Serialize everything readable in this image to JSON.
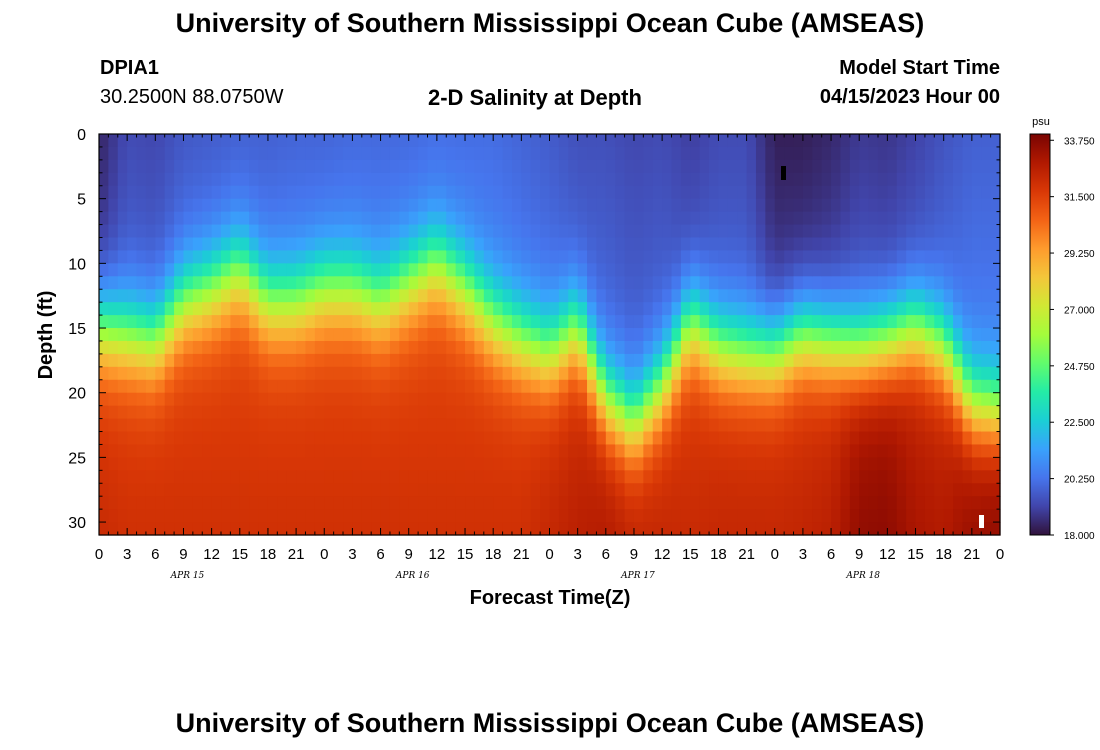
{
  "header": {
    "title": "University of Southern Mississippi Ocean Cube (AMSEAS)",
    "station_id": "DPIA1",
    "station_coords": "30.2500N  88.0750W",
    "plot_title": "2-D Salinity at Depth",
    "model_start_label": "Model Start Time",
    "model_start_value": "04/15/2023 Hour 00"
  },
  "footer": {
    "title": "University of Southern Mississippi Ocean Cube (AMSEAS)"
  },
  "colors": {
    "scale_stops": [
      "#30123b",
      "#4145ab",
      "#4675ed",
      "#39a2fc",
      "#1bcfd4",
      "#24eca6",
      "#61fc6c",
      "#a4fc3b",
      "#d1e834",
      "#f3c63a",
      "#fe9b2d",
      "#f36315",
      "#d93806",
      "#b11901",
      "#7a0402"
    ]
  },
  "chart_data": {
    "type": "heatmap",
    "title": "2-D Salinity at Depth",
    "xlabel": "Forecast Time(Z)",
    "ylabel": "Depth (ft)",
    "x_tick_labels": [
      "0",
      "3",
      "6",
      "9",
      "12",
      "15",
      "18",
      "21",
      "0",
      "3",
      "6",
      "9",
      "12",
      "15",
      "18",
      "21",
      "0",
      "3",
      "6",
      "9",
      "12",
      "15",
      "18",
      "21",
      "0",
      "3",
      "6",
      "9",
      "12",
      "15",
      "18",
      "21",
      "0"
    ],
    "date_labels": [
      {
        "label": "APR 15",
        "hour": 9
      },
      {
        "label": "APR 16",
        "hour": 33
      },
      {
        "label": "APR 17",
        "hour": 57
      },
      {
        "label": "APR 18",
        "hour": 81
      }
    ],
    "xlim": [
      0,
      96
    ],
    "ylim": [
      0,
      31
    ],
    "y_ticks": [
      0,
      5,
      10,
      15,
      20,
      25,
      30
    ],
    "y_tick_labels": [
      "0",
      "5",
      "10",
      "15",
      "20",
      "25",
      "30"
    ],
    "colorbar": {
      "unit": "psu",
      "min": 18.0,
      "max": 34.0,
      "tick_values": [
        33.75,
        31.5,
        29.25,
        27.0,
        24.75,
        22.5,
        20.25,
        18.0
      ],
      "tick_labels": [
        "33.750",
        "31.500",
        "29.250",
        "27.000",
        "24.750",
        "22.500",
        "20.250",
        "18.000"
      ]
    },
    "halocline_depth_ft": {
      "hours": [
        0,
        3,
        6,
        9,
        12,
        15,
        18,
        21,
        24,
        27,
        30,
        33,
        36,
        39,
        42,
        45,
        48,
        51,
        54,
        57,
        60,
        63,
        66,
        69,
        72,
        75,
        78,
        81,
        84,
        87,
        90,
        93,
        96
      ],
      "values": [
        15,
        15.5,
        16,
        13,
        12,
        10.5,
        13,
        13,
        12,
        12,
        13,
        11.5,
        10,
        12,
        14.5,
        16,
        17,
        15,
        20.5,
        22.5,
        19.5,
        14.5,
        16.5,
        17,
        17,
        15.5,
        16,
        16.5,
        16,
        15,
        16.5,
        21,
        21.5
      ]
    },
    "surface_salinity_psu": {
      "hours": [
        0,
        3,
        6,
        9,
        12,
        15,
        18,
        21,
        24,
        27,
        30,
        33,
        36,
        39,
        42,
        45,
        48,
        51,
        54,
        57,
        60,
        63,
        66,
        69,
        72,
        75,
        78,
        81,
        84,
        87,
        90,
        93,
        96
      ],
      "values": [
        18.4,
        19.3,
        19.2,
        19.6,
        19.7,
        19.8,
        19.8,
        19.9,
        19.9,
        20.0,
        20.0,
        20.0,
        20.1,
        20.1,
        20.1,
        19.9,
        19.7,
        19.4,
        19.4,
        19.2,
        19.3,
        19.0,
        19.3,
        19.3,
        18.3,
        18.3,
        18.5,
        18.9,
        18.8,
        19.1,
        19.5,
        19.8,
        19.8
      ]
    },
    "bottom_salinity_psu": {
      "hours": [
        0,
        3,
        6,
        9,
        12,
        15,
        18,
        21,
        24,
        27,
        30,
        33,
        36,
        39,
        42,
        45,
        48,
        51,
        54,
        57,
        60,
        63,
        66,
        69,
        72,
        75,
        78,
        81,
        84,
        87,
        90,
        93,
        96
      ],
      "values": [
        32.2,
        32.0,
        32.0,
        32.0,
        32.0,
        32.0,
        32.0,
        32.0,
        32.0,
        32.0,
        32.0,
        32.0,
        32.0,
        32.0,
        32.0,
        32.0,
        32.3,
        32.6,
        32.8,
        32.4,
        32.3,
        32.2,
        32.3,
        32.3,
        32.3,
        32.4,
        32.6,
        33.5,
        33.6,
        33.0,
        32.8,
        33.4,
        33.6
      ]
    }
  }
}
